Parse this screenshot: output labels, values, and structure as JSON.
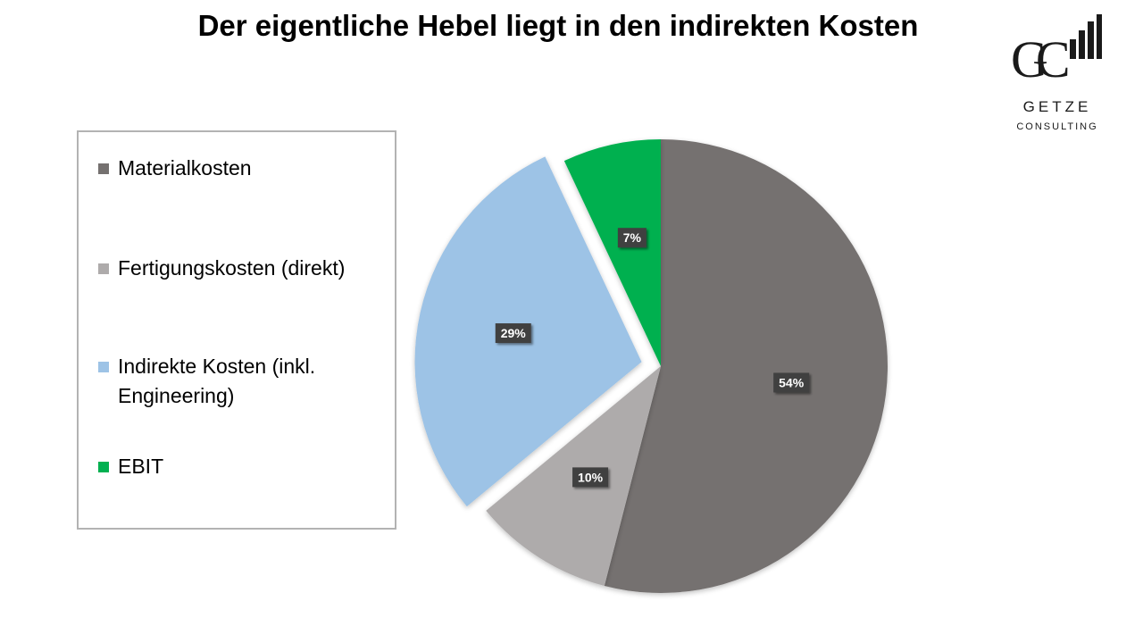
{
  "title": "Der eigentliche Hebel liegt in den indirekten Kosten",
  "logo": {
    "monogram": "GC",
    "name": "GETZE",
    "subtitle": "CONSULTING"
  },
  "chart_data": {
    "type": "pie",
    "title": "Der eigentliche Hebel liegt in den indirekten Kosten",
    "start_angle_deg": 0,
    "direction": "clockwise",
    "legend_position": "left",
    "slices": [
      {
        "label": "Materialkosten",
        "value": 54,
        "display": "54%",
        "color": "#757170",
        "exploded": false
      },
      {
        "label": "Fertigungskosten (direkt)",
        "value": 10,
        "display": "10%",
        "color": "#aeabab",
        "exploded": false
      },
      {
        "label": "Indirekte Kosten (inkl. Engineering)",
        "value": 29,
        "display": "29%",
        "color": "#9dc3e6",
        "exploded": true
      },
      {
        "label": "EBIT",
        "value": 7,
        "display": "7%",
        "color": "#00b050",
        "exploded": false
      }
    ]
  },
  "legend": {
    "items": [
      {
        "label": "Materialkosten",
        "color": "#757170"
      },
      {
        "label": "Fertigungskosten (direkt)",
        "color": "#aeabab"
      },
      {
        "label": "Indirekte Kosten (inkl. Engineering)",
        "color": "#9dc3e6"
      },
      {
        "label": "EBIT",
        "color": "#00b050"
      }
    ]
  }
}
